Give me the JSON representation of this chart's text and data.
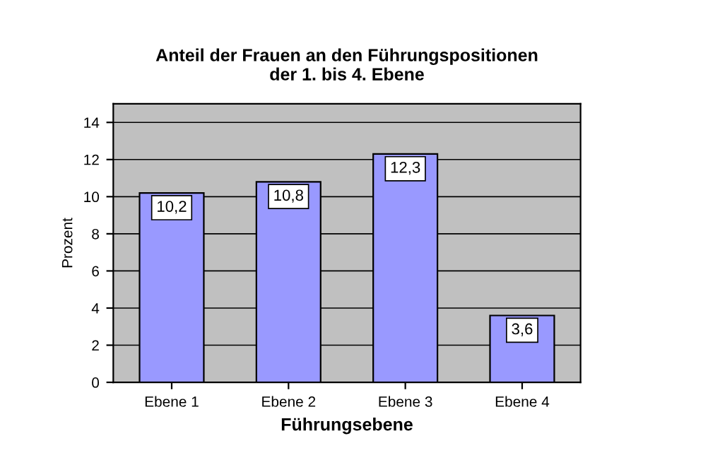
{
  "chart_data": {
    "type": "bar",
    "title": "Anteil der Frauen an den Führungspositionen\nder 1. bis 4. Ebene",
    "xlabel": "Führungsebene",
    "ylabel": "Prozent",
    "categories": [
      "Ebene 1",
      "Ebene 2",
      "Ebene 3",
      "Ebene 4"
    ],
    "values": [
      10.2,
      10.8,
      12.3,
      3.6
    ],
    "value_labels": [
      "10,2",
      "10,8",
      "12,3",
      "3,6"
    ],
    "color": "#9999ff",
    "ylim": [
      0,
      15
    ],
    "yticks": [
      0,
      2,
      4,
      6,
      8,
      10,
      12,
      14
    ],
    "grid": "y"
  }
}
